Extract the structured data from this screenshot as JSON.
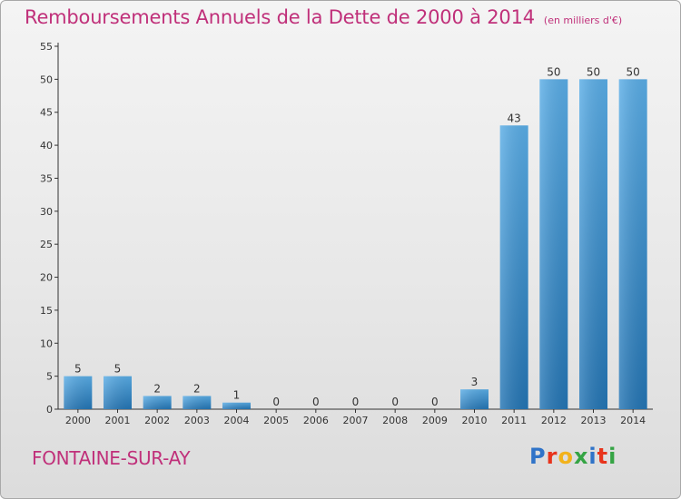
{
  "title": "Remboursements Annuels de la Dette de 2000 à 2014",
  "unit": "(en milliers d'€)",
  "commune": "FONTAINE-SUR-AY",
  "logo_letters": [
    "P",
    "r",
    "o",
    "x",
    "i",
    "t",
    "i"
  ],
  "colors": {
    "title": "#c0307a",
    "bar_light": "#5aade6",
    "bar_dark": "#2475b4",
    "axis": "#333333",
    "grid": "#d8d8d8"
  },
  "chart_data": {
    "type": "bar",
    "title": "Remboursements Annuels de la Dette de 2000 à 2014",
    "subtitle": "(en milliers d'€)",
    "categories": [
      "2000",
      "2001",
      "2002",
      "2003",
      "2004",
      "2005",
      "2006",
      "2007",
      "2008",
      "2009",
      "2010",
      "2011",
      "2012",
      "2013",
      "2014"
    ],
    "values": [
      5,
      5,
      2,
      2,
      1,
      0,
      0,
      0,
      0,
      0,
      3,
      43,
      50,
      50,
      50
    ],
    "xlabel": "",
    "ylabel": "",
    "ylim": [
      0,
      55
    ],
    "yticks": [
      0,
      5,
      10,
      15,
      20,
      25,
      30,
      35,
      40,
      45,
      50,
      55
    ],
    "grid": false,
    "legend": "none"
  }
}
